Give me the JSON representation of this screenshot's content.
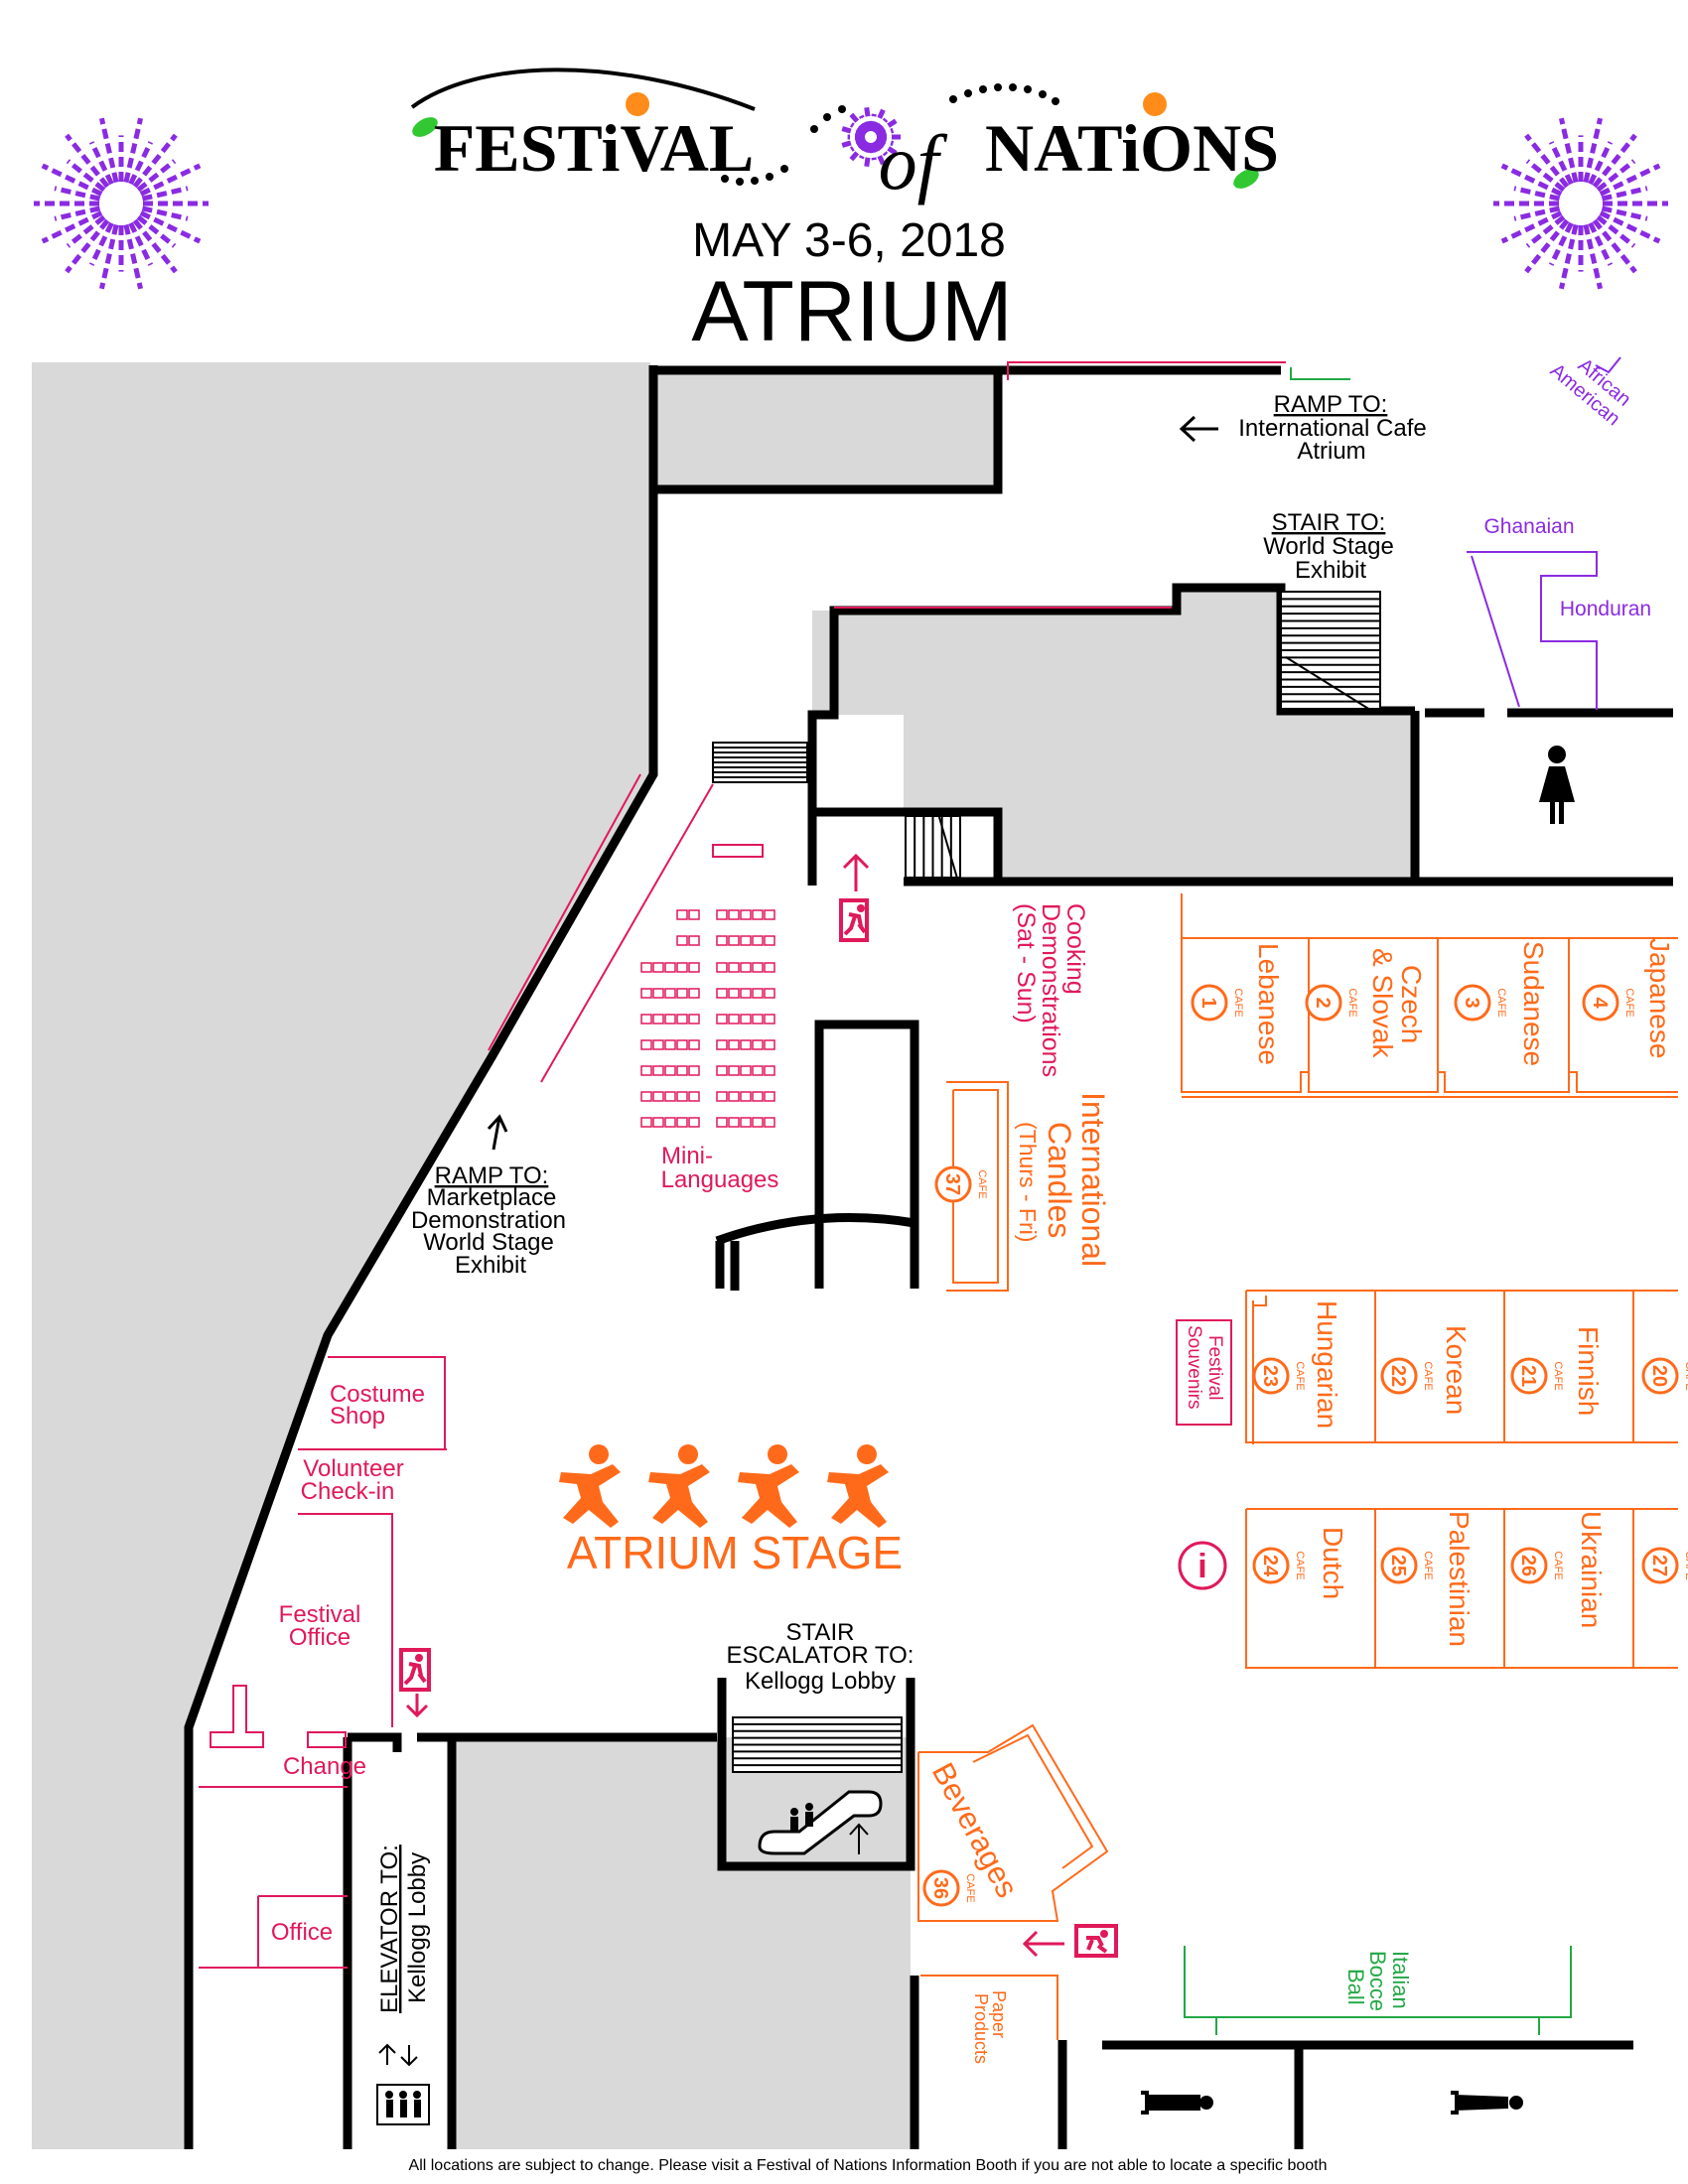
{
  "header": {
    "title_left": "FESTiVAL",
    "title_of": "of",
    "title_right": "NATiONS",
    "dates": "MAY 3-6, 2018",
    "venue": "ATRIUM"
  },
  "colors": {
    "wall": "#000000",
    "gray_area": "#d9d9d9",
    "cafe_orange": "#ff6a1a",
    "service_pink": "#e0195a",
    "purple": "#8a2be2",
    "green": "#22a845",
    "black": "#000000"
  },
  "directions": {
    "ramp_intl_cafe": {
      "heading": "RAMP TO:",
      "lines": [
        "International Cafe",
        "Atrium"
      ]
    },
    "stair_world_stage": {
      "heading": "STAIR TO:",
      "lines": [
        "World Stage",
        "Exhibit"
      ]
    },
    "ramp_marketplace": {
      "heading": "RAMP TO:",
      "lines": [
        "Marketplace",
        "Demonstration",
        "World Stage",
        "Exhibit"
      ]
    },
    "stair_escalator": {
      "lines": [
        "STAIR",
        "ESCALATOR TO:",
        "Kellogg Lobby"
      ]
    },
    "elevator": {
      "heading": "ELEVATOR TO:",
      "line": "Kellogg Lobby"
    }
  },
  "booths_purple": [
    "Ghanaian",
    "Honduran",
    "African",
    "American"
  ],
  "cafe_label": "CAFE",
  "cafes": [
    {
      "num": "1",
      "name": "Lebanese"
    },
    {
      "num": "2",
      "name": "Czech",
      "name2": "& Slovak"
    },
    {
      "num": "3",
      "name": "Sudanese"
    },
    {
      "num": "4",
      "name": "Japanese"
    },
    {
      "num": "37",
      "name": "International",
      "name2": "Candles",
      "name3": "(Thurs - Fri)"
    },
    {
      "num": "23",
      "name": "Hungarian"
    },
    {
      "num": "22",
      "name": "Korean"
    },
    {
      "num": "21",
      "name": "Finnish"
    },
    {
      "num": "20"
    },
    {
      "num": "24",
      "name": "Dutch"
    },
    {
      "num": "25",
      "name": "Palestinian"
    },
    {
      "num": "26",
      "name": "Ukrainian"
    },
    {
      "num": "27"
    },
    {
      "num": "36",
      "name": "Beverages"
    }
  ],
  "areas": {
    "cooking": [
      "Cooking",
      "Demonstrations",
      "(Sat - Sun)"
    ],
    "mini_languages": [
      "Mini-",
      "Languages"
    ],
    "costume_shop": [
      "Costume",
      "Shop"
    ],
    "volunteer": [
      "Volunteer",
      "Check-in"
    ],
    "festival_office": [
      "Festival",
      "Office"
    ],
    "change": "Change",
    "office": "Office",
    "festival_souvenirs": [
      "Festival",
      "Souvenirs"
    ],
    "info_icon": "i",
    "paper_products": [
      "Paper",
      "Products"
    ],
    "bocce": [
      "Italian",
      "Bocce",
      "Ball"
    ]
  },
  "stage": {
    "label": "ATRIUM STAGE"
  },
  "footer": "All locations are subject to change.  Please visit a Festival of Nations Information Booth if you are not able to locate a specific booth"
}
